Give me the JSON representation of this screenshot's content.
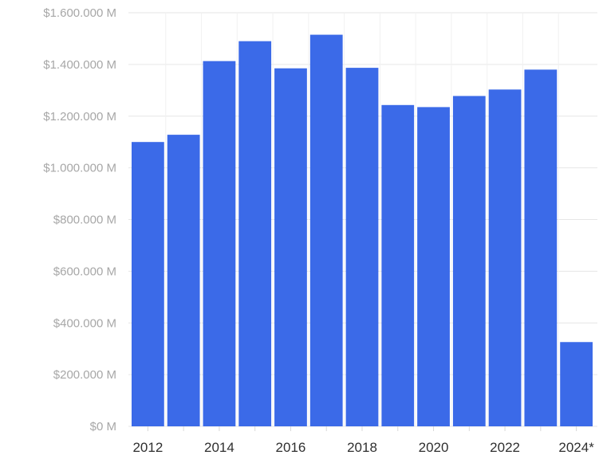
{
  "chart_data": {
    "type": "bar",
    "categories": [
      "2012",
      "2013",
      "2014",
      "2015",
      "2016",
      "2017",
      "2018",
      "2019",
      "2020",
      "2021",
      "2022",
      "2023",
      "2024*"
    ],
    "values": [
      1100,
      1128,
      1413,
      1490,
      1385,
      1515,
      1387,
      1243,
      1235,
      1278,
      1303,
      1380,
      326
    ],
    "x_tick_labels": [
      "2012",
      "2014",
      "2016",
      "2018",
      "2020",
      "2022",
      "2024*"
    ],
    "y_ticks": [
      0,
      200,
      400,
      600,
      800,
      1000,
      1200,
      1400,
      1600
    ],
    "y_tick_labels": [
      "$0 M",
      "$200.000 M",
      "$400.000 M",
      "$600.000 M",
      "$800.000 M",
      "$1.000.000 M",
      "$1.200.000 M",
      "$1.400.000 M",
      "$1.600.000 M"
    ],
    "ylim": [
      0,
      1600
    ],
    "grid": true,
    "bar_color": "#3b6ae8",
    "grid_color": "#e6e6e6",
    "title": "",
    "xlabel": "",
    "ylabel": ""
  }
}
